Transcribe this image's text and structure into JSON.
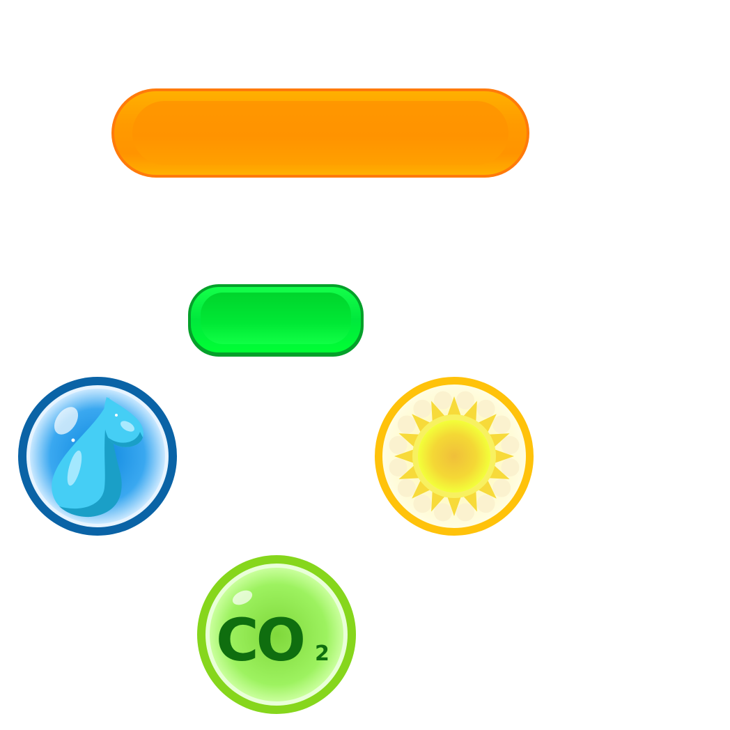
{
  "buttons": {
    "primary": {
      "color": "#ff9a00",
      "border": "#ff7a0a"
    },
    "secondary": {
      "color": "#00e83c",
      "border": "#05a02a"
    }
  },
  "resources": [
    {
      "name": "water-drop-icon",
      "border": "#0a63a6",
      "fill": "#3aa8f0"
    },
    {
      "name": "sun-icon",
      "border": "#ffc20a",
      "fill": "#f5f07a"
    },
    {
      "name": "co2-icon",
      "border": "#86d61c",
      "fill": "#9df260",
      "label_main": "CO",
      "label_sub": "2"
    }
  ]
}
